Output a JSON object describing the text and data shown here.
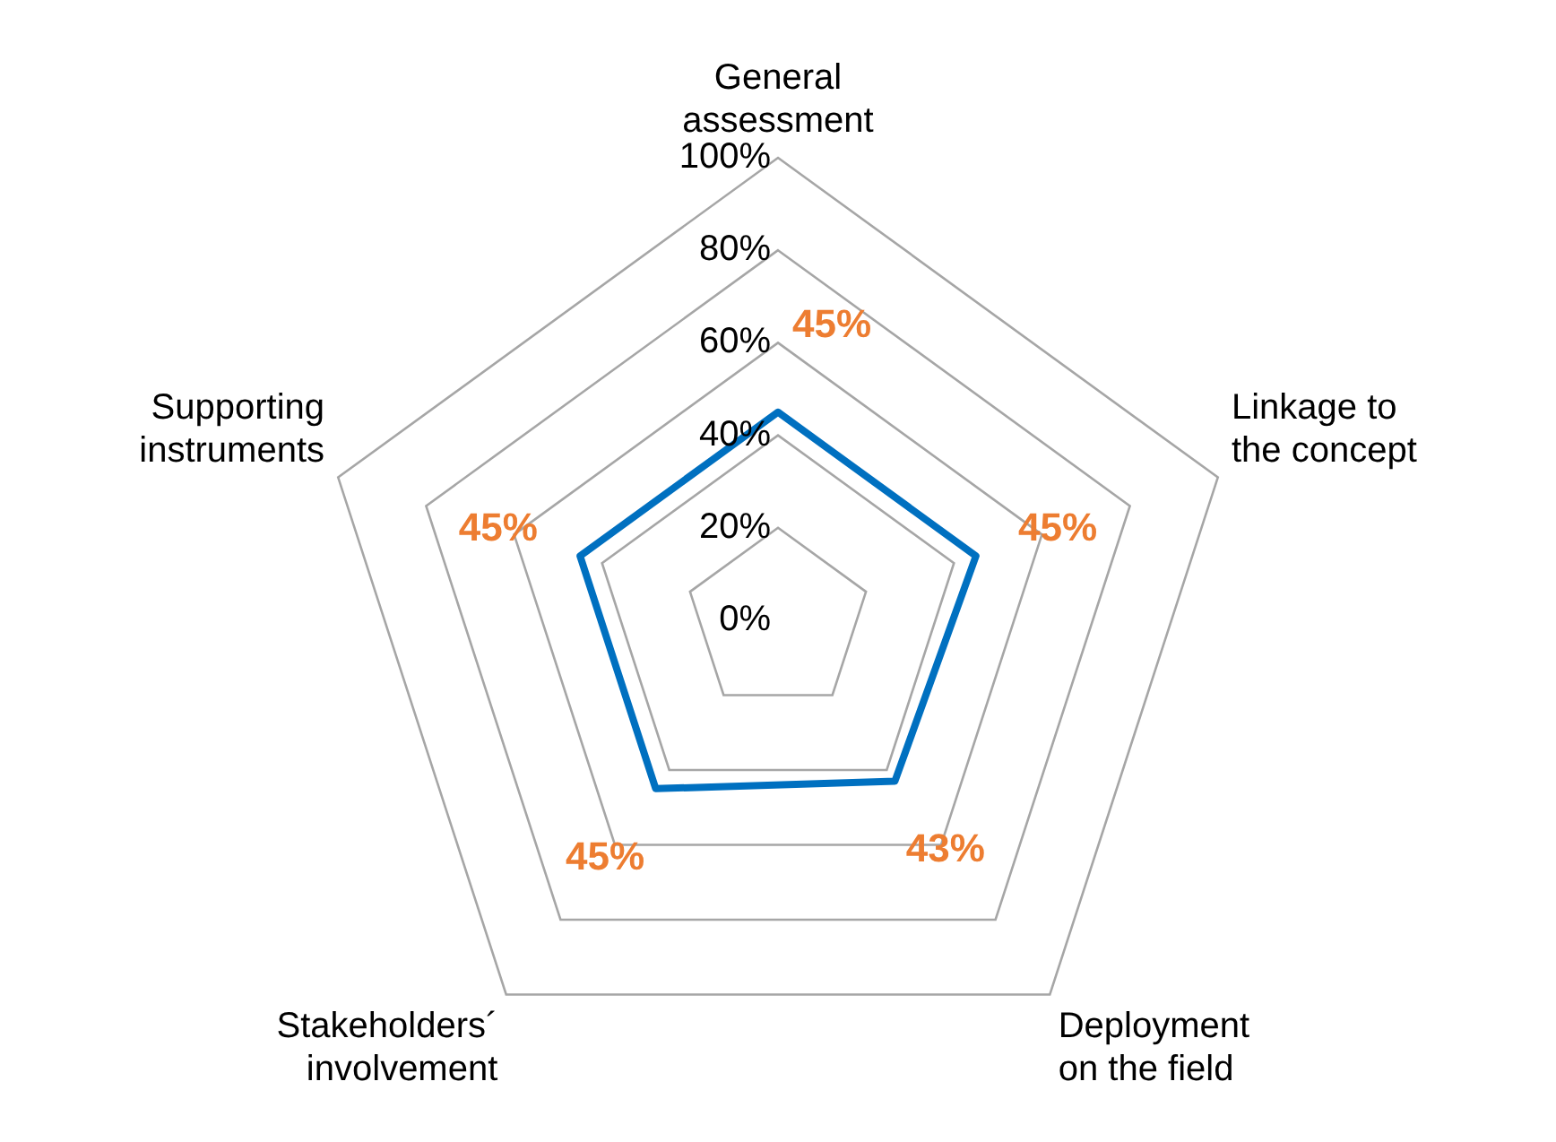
{
  "chart_data": {
    "type": "radar",
    "categories": [
      "General assessment",
      "Linkage to the concept",
      "Deployment on the field",
      "Stakeholders´ involvement",
      "Supporting instruments"
    ],
    "series": [
      {
        "color": "#0070c0",
        "values": [
          45,
          45,
          43,
          45,
          45
        ],
        "value_labels": [
          "45%",
          "45%",
          "43%",
          "45%",
          "45%"
        ]
      }
    ],
    "ylim": [
      0,
      100
    ],
    "yticks": [
      {
        "value": 0,
        "label": "0%"
      },
      {
        "value": 20,
        "label": "20%"
      },
      {
        "value": 40,
        "label": "40%"
      },
      {
        "value": 60,
        "label": "60%"
      },
      {
        "value": 80,
        "label": "80%"
      },
      {
        "value": 100,
        "label": "100%"
      }
    ],
    "grid": true,
    "legend": false,
    "marker": "none",
    "line_style": "solid"
  }
}
